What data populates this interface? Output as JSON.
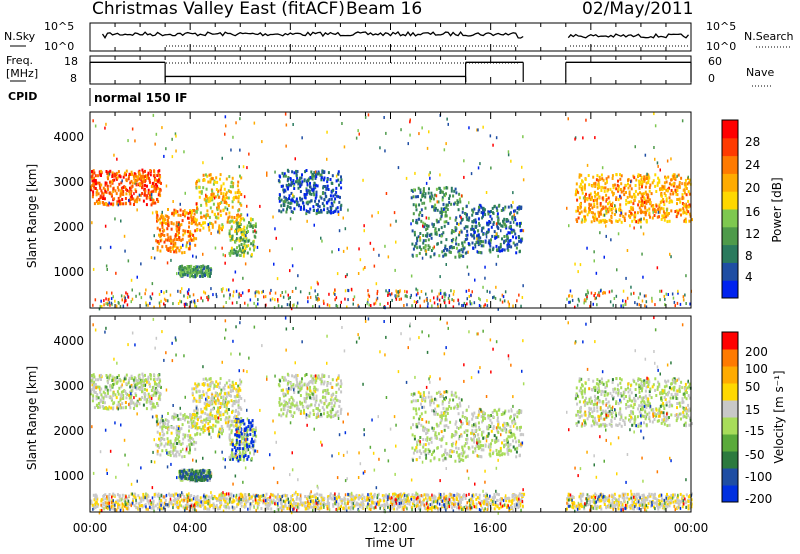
{
  "header": {
    "title": "Christmas Valley East (fitACF)",
    "beam": "Beam 16",
    "date": "02/May/2011"
  },
  "panels": {
    "nsky": {
      "label": "N.Sky",
      "tick_top": "10^5",
      "tick_bottom": "10^0",
      "right_label": "N.Search",
      "right_tick_top": "10^5",
      "right_tick_bottom": "10^0"
    },
    "freq": {
      "label_line1": "Freq.",
      "label_line2": "[MHz]",
      "tick_top": "18",
      "tick_bottom": "8",
      "right_label": "Nave",
      "right_tick_top": "60",
      "right_tick_bottom": "0"
    },
    "cpid": {
      "label": "CPID",
      "mode": "normal 150 IF"
    }
  },
  "power_panel": {
    "ylabel": "Slant Range [km]",
    "yticks": [
      "4000",
      "3000",
      "2000",
      "1000"
    ],
    "colorbar_label": "Power [dB]",
    "colorbar_ticks": [
      "28",
      "24",
      "20",
      "16",
      "12",
      "8",
      "4"
    ],
    "colors": [
      "#0022ee",
      "#1f4ea3",
      "#2a7a5e",
      "#4e9a4a",
      "#7ec850",
      "#ffd800",
      "#ffab00",
      "#ff7a00",
      "#ff3a00",
      "#ff0000"
    ]
  },
  "velocity_panel": {
    "ylabel": "Slant Range [km]",
    "yticks": [
      "4000",
      "3000",
      "2000",
      "1000"
    ],
    "colorbar_label": "Velocity [m s⁻¹]",
    "colorbar_ticks": [
      "200",
      "100",
      "50",
      "15",
      "-15",
      "-50",
      "-100",
      "-200"
    ],
    "colors": [
      "#0030e0",
      "#1f4ea3",
      "#2c7a3e",
      "#5aaa3a",
      "#a8dc5a",
      "#c8c8c8",
      "#ffd800",
      "#ffab00",
      "#ff7a00",
      "#ff0000"
    ]
  },
  "x_axis": {
    "ticks": [
      "00:00",
      "04:00",
      "08:00",
      "12:00",
      "16:00",
      "20:00",
      "00:00"
    ],
    "label": "Time UT"
  },
  "chart_data": {
    "type": "heatmap",
    "title": "Christmas Valley East (fitACF) Beam 16",
    "date": "02/May/2011",
    "xlabel": "Time UT",
    "ylabel": "Slant Range [km]",
    "xlim_hours": [
      0,
      24
    ],
    "ylim_km": [
      0,
      4500
    ],
    "data_gap_hours": [
      17.3,
      19.0
    ],
    "nsky_range": "10^0 - 10^5",
    "freq_range_mhz": [
      8,
      18
    ],
    "freq_segments": [
      {
        "start_h": 0.0,
        "end_h": 3.0,
        "mhz": 16.2
      },
      {
        "start_h": 3.0,
        "end_h": 15.0,
        "mhz": 10.3
      },
      {
        "start_h": 15.0,
        "end_h": 17.3,
        "mhz": 16.2
      },
      {
        "start_h": 19.0,
        "end_h": 24.0,
        "mhz": 16.2
      }
    ],
    "nave_range": [
      0,
      60
    ],
    "power_scale_db": [
      0,
      30
    ],
    "velocity_scale_ms": [
      -200,
      200
    ],
    "power_features": [
      {
        "start_h": 0.0,
        "end_h": 2.8,
        "range_km": [
          2400,
          3200
        ],
        "db": 24
      },
      {
        "start_h": 2.6,
        "end_h": 4.2,
        "range_km": [
          1300,
          2300
        ],
        "db": 22
      },
      {
        "start_h": 3.5,
        "end_h": 4.8,
        "range_km": [
          750,
          1000
        ],
        "db": 10
      },
      {
        "start_h": 4.2,
        "end_h": 6.0,
        "range_km": [
          1800,
          3100
        ],
        "db": 18
      },
      {
        "start_h": 5.5,
        "end_h": 6.6,
        "range_km": [
          1200,
          2100
        ],
        "db": 12
      },
      {
        "start_h": 7.5,
        "end_h": 10.0,
        "range_km": [
          2200,
          3200
        ],
        "db": 5
      },
      {
        "start_h": 12.8,
        "end_h": 15.0,
        "range_km": [
          1200,
          2800
        ],
        "db": 8
      },
      {
        "start_h": 15.0,
        "end_h": 17.2,
        "range_km": [
          1300,
          2400
        ],
        "db": 6
      },
      {
        "start_h": 19.3,
        "end_h": 24.0,
        "range_km": [
          2000,
          3100
        ],
        "db": 20
      }
    ],
    "velocity_features": [
      {
        "start_h": 3.5,
        "end_h": 4.8,
        "range_km": [
          750,
          1000
        ],
        "ms": 120
      },
      {
        "start_h": 5.6,
        "end_h": 6.6,
        "range_km": [
          1200,
          2200
        ],
        "ms": 200
      },
      {
        "start_h": 4.0,
        "end_h": 6.0,
        "range_km": [
          1900,
          3000
        ],
        "ms": -40
      },
      {
        "start_h": 0.0,
        "end_h": 24.0,
        "range_km": [
          100,
          450
        ],
        "ms": -30
      }
    ]
  }
}
